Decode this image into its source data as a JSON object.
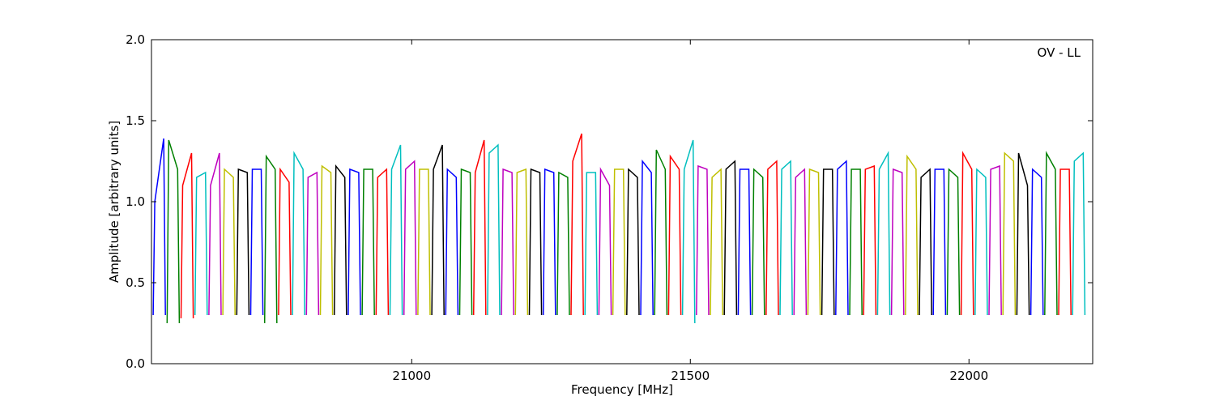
{
  "chart_data": {
    "type": "line",
    "xlabel": "Frequency [MHz]",
    "ylabel": "Amplitude [arbitrary units]",
    "annotation": "OV - LL",
    "xlim": [
      20533,
      22222
    ],
    "ylim": [
      0,
      2
    ],
    "xticks": [
      21000,
      21500,
      22000
    ],
    "yticks": [
      {
        "value": 0,
        "label": "0.0"
      },
      {
        "value": 0.5,
        "label": "0.5"
      },
      {
        "value": 1,
        "label": "1.0"
      },
      {
        "value": 1.5,
        "label": "1.5"
      },
      {
        "value": 2,
        "label": "2.0"
      }
    ],
    "series": [
      {
        "color": "#0000ff",
        "x": [
          20536,
          20539,
          20555,
          20558,
          null,
          20711,
          20714,
          20730,
          20733,
          null,
          20886,
          20889,
          20905,
          20908,
          null,
          21061,
          21064,
          21080,
          21083,
          null,
          21236,
          21239,
          21255,
          21258,
          null,
          21411,
          21414,
          21430,
          21433,
          null,
          21586,
          21589,
          21605,
          21608,
          null,
          21761,
          21764,
          21780,
          21783,
          null,
          21936,
          21939,
          21955,
          21958,
          null,
          22111,
          22114,
          22130,
          22133
        ],
        "values": [
          0.3,
          1.0,
          1.39,
          0.3,
          null,
          0.3,
          1.2,
          1.2,
          0.3,
          null,
          0.3,
          1.2,
          1.18,
          0.3,
          null,
          0.3,
          1.2,
          1.15,
          0.3,
          null,
          0.3,
          1.2,
          1.18,
          0.3,
          null,
          0.3,
          1.25,
          1.18,
          0.3,
          null,
          0.3,
          1.2,
          1.2,
          0.3,
          null,
          0.3,
          1.2,
          1.25,
          0.3,
          null,
          0.3,
          1.2,
          1.2,
          0.3,
          null,
          0.3,
          1.2,
          1.15,
          0.3
        ]
      },
      {
        "color": "#008000",
        "x": [
          20561,
          20564,
          20580,
          20583,
          null,
          20736,
          20739,
          20755,
          20758,
          null,
          20911,
          20914,
          20930,
          20933,
          null,
          21086,
          21089,
          21105,
          21108,
          null,
          21261,
          21264,
          21280,
          21283,
          null,
          21436,
          21439,
          21455,
          21458,
          null,
          21611,
          21614,
          21630,
          21633,
          null,
          21786,
          21789,
          21805,
          21808,
          null,
          21961,
          21964,
          21980,
          21983,
          null,
          22136,
          22139,
          22155,
          22158
        ],
        "values": [
          0.25,
          1.38,
          1.2,
          0.25,
          null,
          0.25,
          1.28,
          1.2,
          0.25,
          null,
          0.3,
          1.2,
          1.2,
          0.3,
          null,
          0.3,
          1.2,
          1.18,
          0.3,
          null,
          0.3,
          1.18,
          1.15,
          0.3,
          null,
          0.3,
          1.32,
          1.2,
          0.3,
          null,
          0.3,
          1.2,
          1.15,
          0.3,
          null,
          0.3,
          1.2,
          1.2,
          0.3,
          null,
          0.3,
          1.2,
          1.15,
          0.3,
          null,
          0.3,
          1.3,
          1.2,
          0.3
        ]
      },
      {
        "color": "#ff0000",
        "x": [
          20586,
          20589,
          20605,
          20608,
          null,
          20761,
          20764,
          20780,
          20783,
          null,
          20936,
          20939,
          20955,
          20958,
          null,
          21111,
          21114,
          21130,
          21133,
          null,
          21286,
          21289,
          21305,
          21308,
          null,
          21461,
          21464,
          21480,
          21483,
          null,
          21636,
          21639,
          21655,
          21658,
          null,
          21811,
          21814,
          21830,
          21833,
          null,
          21986,
          21989,
          22005,
          22008,
          null,
          22161,
          22164,
          22180,
          22183
        ],
        "values": [
          0.28,
          1.1,
          1.3,
          0.28,
          null,
          0.3,
          1.2,
          1.12,
          0.3,
          null,
          0.3,
          1.15,
          1.2,
          0.3,
          null,
          0.3,
          1.18,
          1.38,
          0.3,
          null,
          0.3,
          1.25,
          1.42,
          0.3,
          null,
          0.3,
          1.28,
          1.2,
          0.3,
          null,
          0.3,
          1.2,
          1.25,
          0.3,
          null,
          0.3,
          1.2,
          1.22,
          0.3,
          null,
          0.3,
          1.3,
          1.2,
          0.3,
          null,
          0.3,
          1.2,
          1.2,
          0.3
        ]
      },
      {
        "color": "#00bfbf",
        "x": [
          20611,
          20614,
          20630,
          20633,
          null,
          20786,
          20789,
          20805,
          20808,
          null,
          20961,
          20964,
          20980,
          20983,
          null,
          21136,
          21139,
          21155,
          21158,
          null,
          21311,
          21314,
          21330,
          21333,
          null,
          21486,
          21489,
          21505,
          21508,
          null,
          21661,
          21664,
          21680,
          21683,
          null,
          21836,
          21839,
          21855,
          21858,
          null,
          22011,
          22014,
          22030,
          22033,
          null,
          22186,
          22189,
          22205,
          22208
        ],
        "values": [
          0.3,
          1.15,
          1.18,
          0.3,
          null,
          0.3,
          1.3,
          1.2,
          0.3,
          null,
          0.3,
          1.2,
          1.35,
          0.3,
          null,
          0.3,
          1.3,
          1.35,
          0.3,
          null,
          0.3,
          1.18,
          1.18,
          0.3,
          null,
          0.3,
          1.2,
          1.38,
          0.25,
          null,
          0.3,
          1.2,
          1.25,
          0.3,
          null,
          0.3,
          1.2,
          1.3,
          0.3,
          null,
          0.3,
          1.2,
          1.15,
          0.3,
          null,
          0.3,
          1.25,
          1.3,
          0.3
        ]
      },
      {
        "color": "#bf00bf",
        "x": [
          20636,
          20639,
          20655,
          20658,
          null,
          20811,
          20814,
          20830,
          20833,
          null,
          20986,
          20989,
          21005,
          21008,
          null,
          21161,
          21164,
          21180,
          21183,
          null,
          21336,
          21339,
          21355,
          21358,
          null,
          21511,
          21514,
          21530,
          21533,
          null,
          21686,
          21689,
          21705,
          21708,
          null,
          21861,
          21864,
          21880,
          21883,
          null,
          22036,
          22039,
          22055,
          22058
        ],
        "values": [
          0.3,
          1.1,
          1.3,
          0.3,
          null,
          0.3,
          1.15,
          1.18,
          0.3,
          null,
          0.3,
          1.2,
          1.25,
          0.3,
          null,
          0.3,
          1.2,
          1.18,
          0.3,
          null,
          0.3,
          1.2,
          1.1,
          0.3,
          null,
          0.3,
          1.22,
          1.2,
          0.3,
          null,
          0.3,
          1.15,
          1.2,
          0.3,
          null,
          0.3,
          1.2,
          1.18,
          0.3,
          null,
          0.3,
          1.2,
          1.22,
          0.3
        ]
      },
      {
        "color": "#bfbf00",
        "x": [
          20661,
          20664,
          20680,
          20683,
          null,
          20836,
          20839,
          20855,
          20858,
          null,
          21011,
          21014,
          21030,
          21033,
          null,
          21186,
          21189,
          21205,
          21208,
          null,
          21361,
          21364,
          21380,
          21383,
          null,
          21536,
          21539,
          21555,
          21558,
          null,
          21711,
          21714,
          21730,
          21733,
          null,
          21886,
          21889,
          21905,
          21908,
          null,
          22061,
          22064,
          22080,
          22083
        ],
        "values": [
          0.3,
          1.2,
          1.15,
          0.3,
          null,
          0.3,
          1.22,
          1.18,
          0.3,
          null,
          0.3,
          1.2,
          1.2,
          0.3,
          null,
          0.3,
          1.18,
          1.2,
          0.3,
          null,
          0.3,
          1.2,
          1.2,
          0.3,
          null,
          0.3,
          1.15,
          1.2,
          0.3,
          null,
          0.3,
          1.2,
          1.18,
          0.3,
          null,
          0.3,
          1.28,
          1.2,
          0.3,
          null,
          0.3,
          1.3,
          1.25,
          0.3
        ]
      },
      {
        "color": "#000000",
        "x": [
          20686,
          20689,
          20705,
          20708,
          null,
          20861,
          20864,
          20880,
          20883,
          null,
          21036,
          21039,
          21055,
          21058,
          null,
          21211,
          21214,
          21230,
          21233,
          null,
          21386,
          21389,
          21405,
          21408,
          null,
          21561,
          21564,
          21580,
          21583,
          null,
          21736,
          21739,
          21755,
          21758,
          null,
          21911,
          21914,
          21930,
          21933,
          null,
          22086,
          22089,
          22105,
          22108
        ],
        "values": [
          0.3,
          1.2,
          1.18,
          0.3,
          null,
          0.3,
          1.22,
          1.15,
          0.3,
          null,
          0.3,
          1.2,
          1.35,
          0.3,
          null,
          0.3,
          1.2,
          1.18,
          0.3,
          null,
          0.3,
          1.2,
          1.15,
          0.3,
          null,
          0.3,
          1.2,
          1.25,
          0.3,
          null,
          0.3,
          1.2,
          1.2,
          0.3,
          null,
          0.3,
          1.15,
          1.2,
          0.3,
          null,
          0.3,
          1.3,
          1.1,
          0.3
        ]
      }
    ]
  }
}
